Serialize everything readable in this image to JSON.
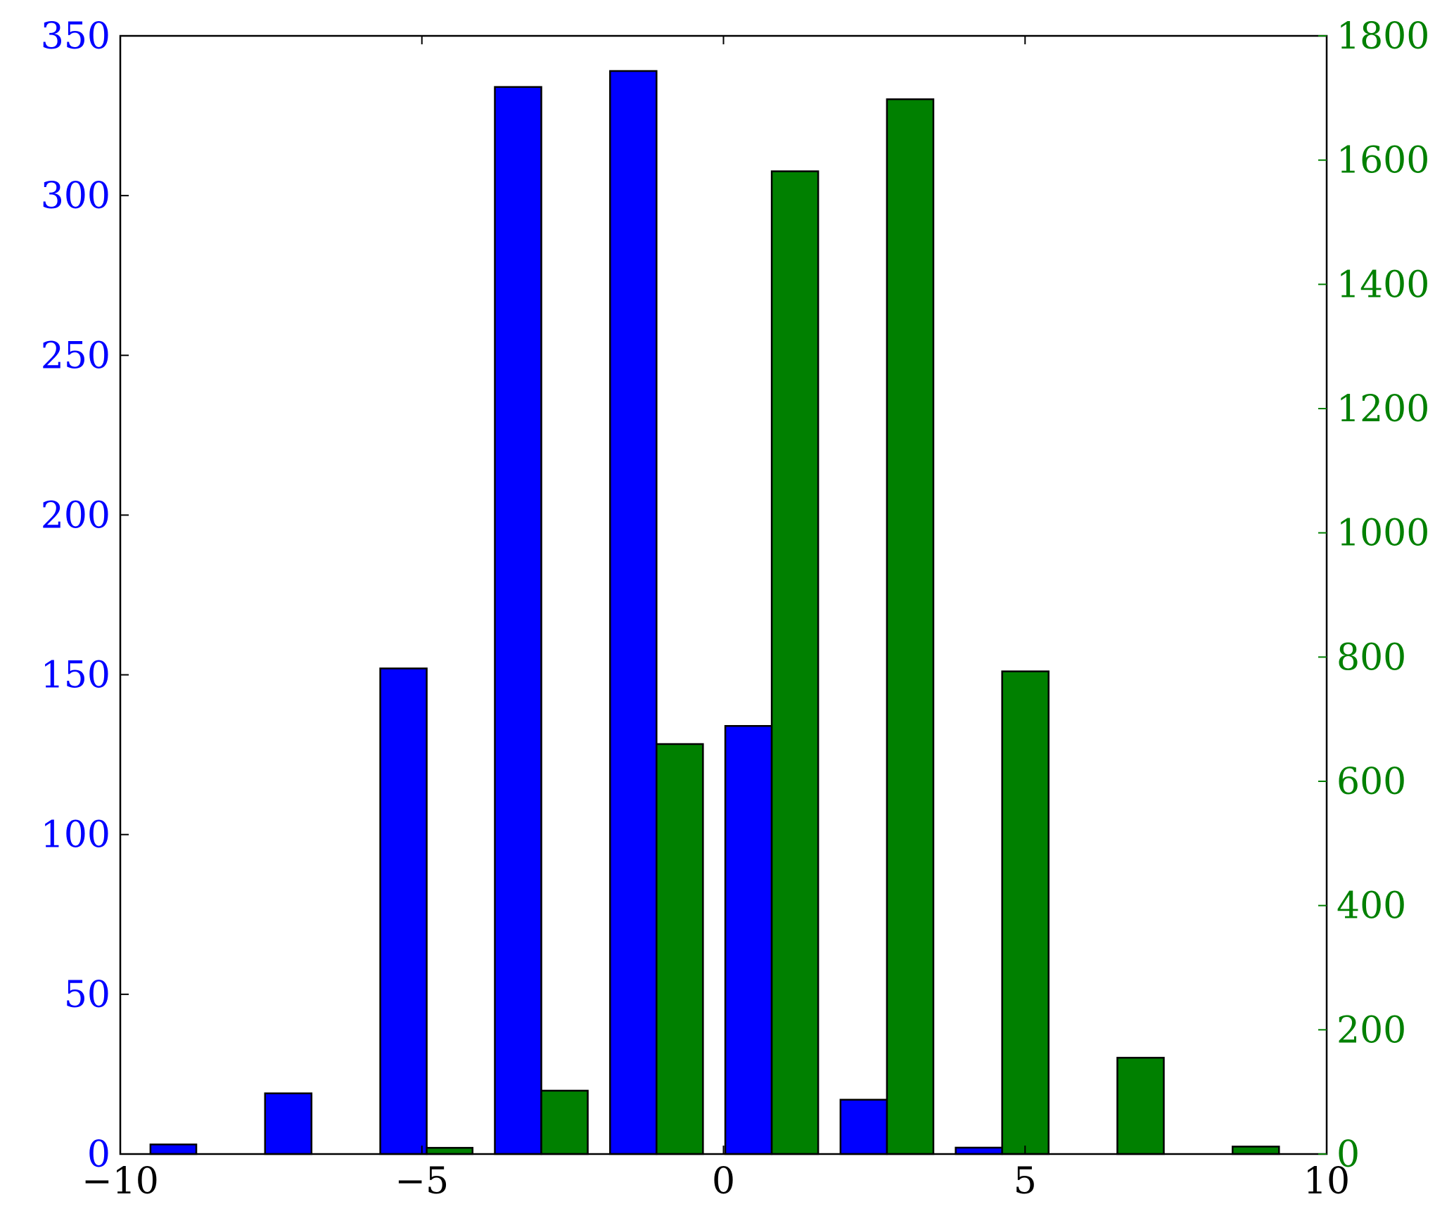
{
  "chart_data": {
    "type": "bar",
    "title": "",
    "xlabel": "",
    "xlim": [
      -10,
      10
    ],
    "x_ticks": [
      -10,
      -5,
      0,
      5,
      10
    ],
    "x_tick_labels": [
      "−10",
      "−5",
      "0",
      "5",
      "10"
    ],
    "grid": false,
    "legend": "none",
    "series": [
      {
        "axis": "left",
        "color": "#0000ff",
        "bins": [
          [
            -9.5,
            -8.74
          ],
          [
            -7.6,
            -6.83
          ],
          [
            -5.69,
            -4.92
          ],
          [
            -3.79,
            -3.02
          ],
          [
            -1.88,
            -1.11
          ],
          [
            0.03,
            0.8
          ],
          [
            1.94,
            2.71
          ],
          [
            3.85,
            4.62
          ]
        ],
        "values": [
          3,
          19,
          152,
          334,
          339,
          134,
          17,
          2
        ]
      },
      {
        "axis": "right",
        "color": "#008000",
        "bins": [
          [
            -4.92,
            -4.16
          ],
          [
            -3.02,
            -2.25
          ],
          [
            -1.11,
            -0.34
          ],
          [
            0.8,
            1.57
          ],
          [
            2.71,
            3.48
          ],
          [
            4.62,
            5.39
          ],
          [
            6.53,
            7.3
          ],
          [
            8.44,
            9.21
          ]
        ],
        "values": [
          10,
          102,
          660,
          1582,
          1698,
          777,
          155,
          12
        ]
      }
    ],
    "y_left": {
      "color": "#0000ff",
      "ylim": [
        0,
        350
      ],
      "ticks": [
        0,
        50,
        100,
        150,
        200,
        250,
        300,
        350
      ],
      "tick_labels": [
        "0",
        "50",
        "100",
        "150",
        "200",
        "250",
        "300",
        "350"
      ]
    },
    "y_right": {
      "color": "#008000",
      "ylim": [
        0,
        1800
      ],
      "ticks": [
        0,
        200,
        400,
        600,
        800,
        1000,
        1200,
        1400,
        1600,
        1800
      ],
      "tick_labels": [
        "0",
        "200",
        "400",
        "600",
        "800",
        "1000",
        "1200",
        "1400",
        "1600",
        "1800"
      ]
    }
  }
}
